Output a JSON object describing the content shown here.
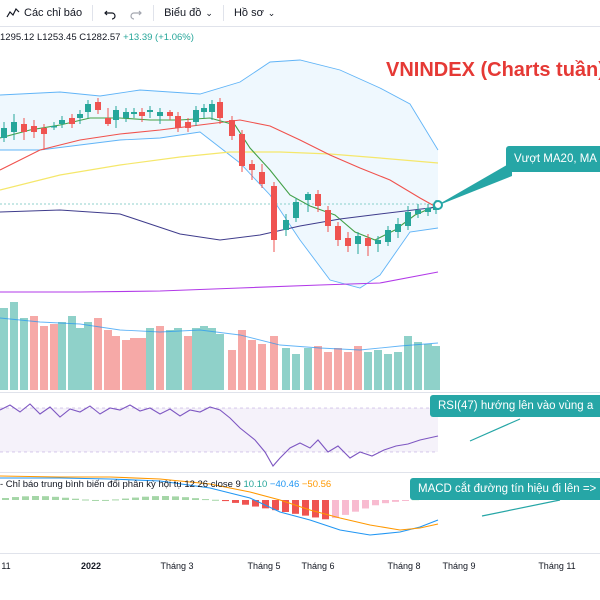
{
  "toolbar": {
    "indicators_label": "Các chỉ báo",
    "chart_type_label": "Biểu đồ",
    "profile_label": "Hồ sơ"
  },
  "ohlc": {
    "high": "1295.12",
    "low": "L1253.45",
    "close": "C1282.57",
    "change": "+13.39 (+1.06%)"
  },
  "title": "VNINDEX (Charts tuần)",
  "callouts": {
    "ma": "Vượt MA20, MA",
    "rsi": "RSI(47) hướng lên vào vùng a",
    "macd": "MACD cắt đường tín hiệu đi lên =>"
  },
  "macd_legend": {
    "text": "- Chỉ báo trung bình biến đổi phân kỳ hội tụ 12 26 close 9",
    "v1": "10.10",
    "v2": "−40.46",
    "v3": "−50.56"
  },
  "time_axis": [
    "11",
    "2022",
    "Tháng 3",
    "Tháng 5",
    "Tháng 6",
    "Tháng 8",
    "Tháng 9",
    "Tháng 11"
  ],
  "colors": {
    "up": "#26a69a",
    "down": "#ef5350",
    "ma_red": "#f0524d",
    "ma_green": "#43a047",
    "ma_yellow": "#f5e76b",
    "ma_navy": "#3f3c8c",
    "ma_purple": "#b23ae8",
    "bollinger": "#2196f3",
    "rsi_line": "#7e57c2",
    "callout": "#26a6a6",
    "title": "#e53935"
  },
  "icons": [
    "indicators-icon",
    "undo-icon",
    "redo-icon",
    "chevron-down-icon"
  ]
}
